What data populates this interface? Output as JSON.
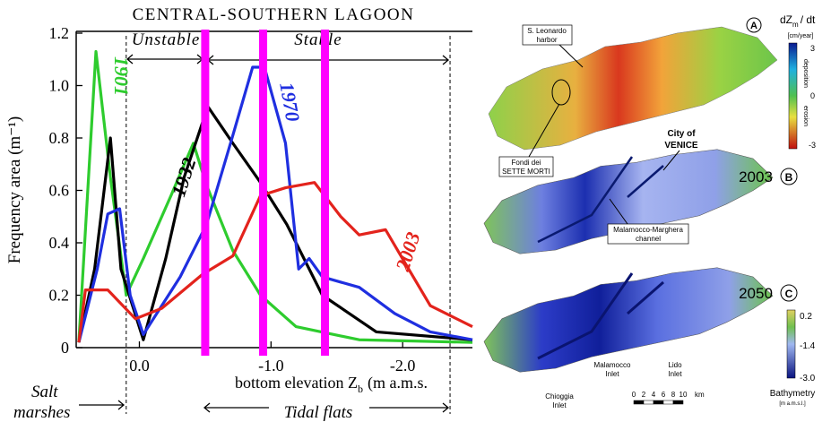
{
  "chart_data": {
    "type": "line",
    "title": "CENTRAL-SOUTHERN LAGOON",
    "y_label": "Frequency area (m⁻¹)",
    "x_label": {
      "text": "bottom elevation Z",
      "subscript": "b",
      "unit": "(m a.m.s."
    },
    "xlim": [
      0.48,
      -2.53
    ],
    "ylim": [
      0,
      1.2
    ],
    "xticks": [
      {
        "value": 0,
        "label": "0.0"
      },
      {
        "value": -1,
        "label": "-1.0"
      },
      {
        "value": -2,
        "label": "-2.0"
      }
    ],
    "yticks": [
      0,
      0.2,
      0.4,
      0.6,
      0.8,
      {
        "value": 1,
        "label": "1.0"
      },
      1.2
    ],
    "series": [
      {
        "name": "1901",
        "color": "#2ecc2e",
        "x": [
          0.46,
          0.33,
          0.22,
          0.1,
          -0.03,
          -0.24,
          -0.41,
          -0.51,
          -0.71,
          -0.92,
          -1.19,
          -1.67,
          -2.53
        ],
        "values": [
          0.02,
          1.13,
          0.65,
          0.2,
          0.34,
          0.58,
          0.78,
          0.62,
          0.37,
          0.2,
          0.08,
          0.03,
          0.02
        ]
      },
      {
        "name": "1932",
        "color": "#000000",
        "x": [
          0.46,
          0.34,
          0.22,
          0.14,
          -0.03,
          -0.2,
          -0.34,
          -0.52,
          -0.71,
          -0.92,
          -1.12,
          -1.39,
          -1.8,
          -2.53
        ],
        "values": [
          0.02,
          0.3,
          0.8,
          0.3,
          0.03,
          0.34,
          0.65,
          0.92,
          0.78,
          0.63,
          0.47,
          0.2,
          0.06,
          0.03
        ]
      },
      {
        "name": "1970",
        "color": "#1f2fe0",
        "x": [
          0.46,
          0.32,
          0.24,
          0.15,
          0.07,
          -0.03,
          -0.31,
          -0.51,
          -0.71,
          -0.86,
          -0.95,
          -1.11,
          -1.21,
          -1.29,
          -1.39,
          -1.67,
          -1.94,
          -2.21,
          -2.53
        ],
        "values": [
          0.02,
          0.3,
          0.51,
          0.53,
          0.2,
          0.05,
          0.27,
          0.47,
          0.81,
          1.07,
          1.07,
          0.78,
          0.3,
          0.34,
          0.27,
          0.23,
          0.13,
          0.06,
          0.03
        ]
      },
      {
        "name": "2003",
        "color": "#e3231c",
        "x": [
          0.46,
          0.41,
          0.24,
          0.03,
          -0.17,
          -0.48,
          -0.71,
          -0.92,
          -1.11,
          -1.33,
          -1.53,
          -1.67,
          -1.87,
          -2.01,
          -2.21,
          -2.53
        ],
        "values": [
          0.02,
          0.22,
          0.22,
          0.11,
          0.15,
          0.28,
          0.35,
          0.58,
          0.61,
          0.63,
          0.5,
          0.43,
          0.45,
          0.33,
          0.16,
          0.08
        ]
      }
    ],
    "reference_lines": {
      "color": "#ff00ff",
      "values": [
        -0.5,
        -0.94,
        -1.41
      ]
    },
    "boundaries": [
      0.1,
      -2.36
    ],
    "annotations": {
      "unstable": "Unstable",
      "stable": "Stable",
      "salt": "Salt",
      "marshes": "marshes",
      "tidal_flats": "Tidal flats"
    }
  },
  "maps": {
    "panel_a": {
      "label": "A",
      "harbor": "S. Leonardo",
      "harbor2": "harbor",
      "fondi": "Fondi dei",
      "sette": "SETTE MORTI",
      "colorbar": {
        "title": "dZ",
        "title_sub": "m",
        "title_end": "/ dt",
        "unit": "[cm/year]",
        "ticks": [
          "3",
          "0",
          "-3"
        ],
        "top": "deposition",
        "bottom": "erosion"
      }
    },
    "panel_b": {
      "year": "2003",
      "label": "B",
      "city": "City of",
      "venice": "VENICE",
      "channel": "Malamocco-Marghera",
      "channel2": "channel"
    },
    "panel_c": {
      "year": "2050",
      "label": "C",
      "chioggia": "Chioggia",
      "malamocco": "Malamocco",
      "lido": "Lido",
      "inlet": "Inlet",
      "colorbar": {
        "ticks": [
          "0.2",
          "-1.4",
          "-3.0"
        ],
        "title": "Bathymetry",
        "unit": "[m a.m.s.l.]"
      },
      "scale": {
        "labels": [
          "0",
          "2",
          "4",
          "6",
          "8",
          "10"
        ],
        "unit": "km"
      }
    }
  }
}
